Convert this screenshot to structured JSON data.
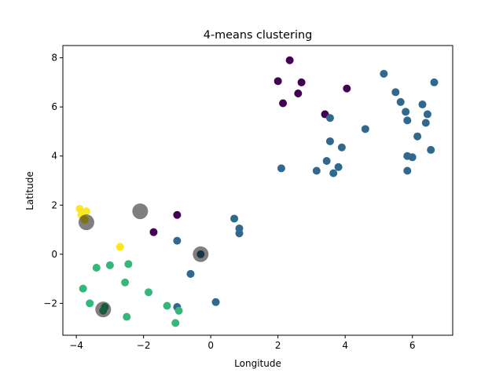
{
  "chart_data": {
    "type": "scatter",
    "title": "4-means clustering",
    "xlabel": "Longitude",
    "ylabel": "Latitude",
    "xlim": [
      -4.4,
      7.2
    ],
    "ylim": [
      -3.3,
      8.5
    ],
    "xticks": [
      -4,
      -2,
      0,
      2,
      4,
      6
    ],
    "yticks": [
      -2,
      0,
      2,
      4,
      6,
      8
    ],
    "grid": false,
    "legend": "none",
    "colormap": "viridis",
    "cluster_colors": [
      "#440154",
      "#31688e",
      "#35b779",
      "#fde725"
    ],
    "series": [
      {
        "cluster": 0,
        "points": [
          {
            "x": 2.35,
            "y": 7.9
          },
          {
            "x": 2.0,
            "y": 7.05
          },
          {
            "x": 2.7,
            "y": 7.0
          },
          {
            "x": 2.6,
            "y": 6.55
          },
          {
            "x": 2.15,
            "y": 6.15
          },
          {
            "x": 4.05,
            "y": 6.75
          },
          {
            "x": 3.4,
            "y": 5.7
          },
          {
            "x": -1.0,
            "y": 1.6
          },
          {
            "x": -1.7,
            "y": 0.9
          }
        ]
      },
      {
        "cluster": 1,
        "points": [
          {
            "x": 5.15,
            "y": 7.35
          },
          {
            "x": 6.65,
            "y": 7.0
          },
          {
            "x": 5.5,
            "y": 6.6
          },
          {
            "x": 5.65,
            "y": 6.2
          },
          {
            "x": 6.3,
            "y": 6.1
          },
          {
            "x": 5.8,
            "y": 5.8
          },
          {
            "x": 6.45,
            "y": 5.7
          },
          {
            "x": 3.55,
            "y": 5.55
          },
          {
            "x": 5.85,
            "y": 5.45
          },
          {
            "x": 6.4,
            "y": 5.35
          },
          {
            "x": 4.6,
            "y": 5.1
          },
          {
            "x": 6.15,
            "y": 4.8
          },
          {
            "x": 3.55,
            "y": 4.6
          },
          {
            "x": 3.9,
            "y": 4.35
          },
          {
            "x": 6.55,
            "y": 4.25
          },
          {
            "x": 5.85,
            "y": 4.0
          },
          {
            "x": 6.0,
            "y": 3.95
          },
          {
            "x": 3.45,
            "y": 3.8
          },
          {
            "x": 3.8,
            "y": 3.55
          },
          {
            "x": 2.1,
            "y": 3.5
          },
          {
            "x": 3.15,
            "y": 3.4
          },
          {
            "x": 3.65,
            "y": 3.3
          },
          {
            "x": 5.85,
            "y": 3.4
          },
          {
            "x": 0.7,
            "y": 1.45
          },
          {
            "x": 0.85,
            "y": 1.05
          },
          {
            "x": 0.85,
            "y": 0.85
          },
          {
            "x": -1.0,
            "y": 0.55
          },
          {
            "x": -0.3,
            "y": 0.0
          },
          {
            "x": -0.6,
            "y": -0.8
          },
          {
            "x": 0.15,
            "y": -1.95
          },
          {
            "x": -1.0,
            "y": -2.15
          }
        ]
      },
      {
        "cluster": 2,
        "points": [
          {
            "x": -2.45,
            "y": -0.4
          },
          {
            "x": -3.0,
            "y": -0.45
          },
          {
            "x": -3.4,
            "y": -0.55
          },
          {
            "x": -2.55,
            "y": -1.15
          },
          {
            "x": -3.8,
            "y": -1.4
          },
          {
            "x": -1.85,
            "y": -1.55
          },
          {
            "x": -3.6,
            "y": -2.0
          },
          {
            "x": -1.3,
            "y": -2.1
          },
          {
            "x": -3.15,
            "y": -2.15
          },
          {
            "x": -3.2,
            "y": -2.3
          },
          {
            "x": -0.95,
            "y": -2.3
          },
          {
            "x": -2.5,
            "y": -2.55
          },
          {
            "x": -1.05,
            "y": -2.8
          }
        ]
      },
      {
        "cluster": 3,
        "points": [
          {
            "x": -3.9,
            "y": 1.85
          },
          {
            "x": -3.7,
            "y": 1.75
          },
          {
            "x": -3.85,
            "y": 1.6
          },
          {
            "x": -3.75,
            "y": 1.4
          },
          {
            "x": -2.7,
            "y": 0.3
          }
        ]
      }
    ],
    "centroids": [
      {
        "x": -2.1,
        "y": 1.75
      },
      {
        "x": -0.3,
        "y": 0.0
      },
      {
        "x": -3.2,
        "y": -2.25
      },
      {
        "x": -3.7,
        "y": 1.3
      }
    ]
  }
}
